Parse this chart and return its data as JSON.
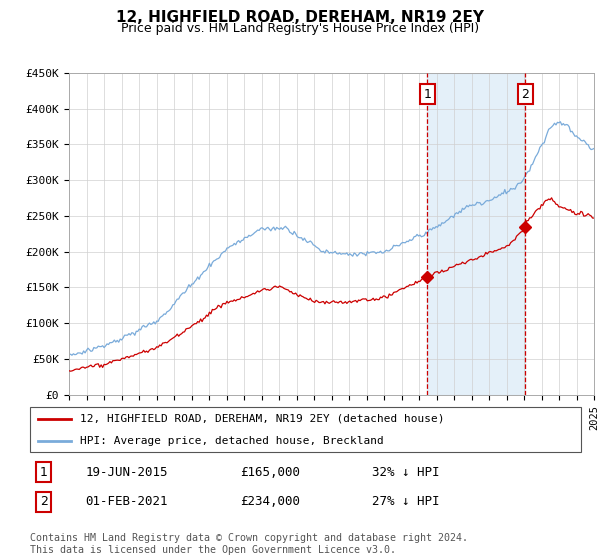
{
  "title": "12, HIGHFIELD ROAD, DEREHAM, NR19 2EY",
  "subtitle": "Price paid vs. HM Land Registry's House Price Index (HPI)",
  "legend_line1": "12, HIGHFIELD ROAD, DEREHAM, NR19 2EY (detached house)",
  "legend_line2": "HPI: Average price, detached house, Breckland",
  "sale1_label": "1",
  "sale1_date": "19-JUN-2015",
  "sale1_price": "£165,000",
  "sale1_hpi": "32% ↓ HPI",
  "sale2_label": "2",
  "sale2_date": "01-FEB-2021",
  "sale2_price": "£234,000",
  "sale2_hpi": "27% ↓ HPI",
  "footnote": "Contains HM Land Registry data © Crown copyright and database right 2024.\nThis data is licensed under the Open Government Licence v3.0.",
  "hpi_color": "#7aabda",
  "price_color": "#cc0000",
  "marker_color": "#cc0000",
  "vline_color": "#cc0000",
  "shade_color": "#d6e8f7",
  "ylim": [
    0,
    450000
  ],
  "yticks": [
    0,
    50000,
    100000,
    150000,
    200000,
    250000,
    300000,
    350000,
    400000,
    450000
  ],
  "ytick_labels": [
    "£0",
    "£50K",
    "£100K",
    "£150K",
    "£200K",
    "£250K",
    "£300K",
    "£350K",
    "£400K",
    "£450K"
  ],
  "sale1_year": 2015.47,
  "sale2_year": 2021.08,
  "sale1_price_val": 165000,
  "sale2_price_val": 234000
}
